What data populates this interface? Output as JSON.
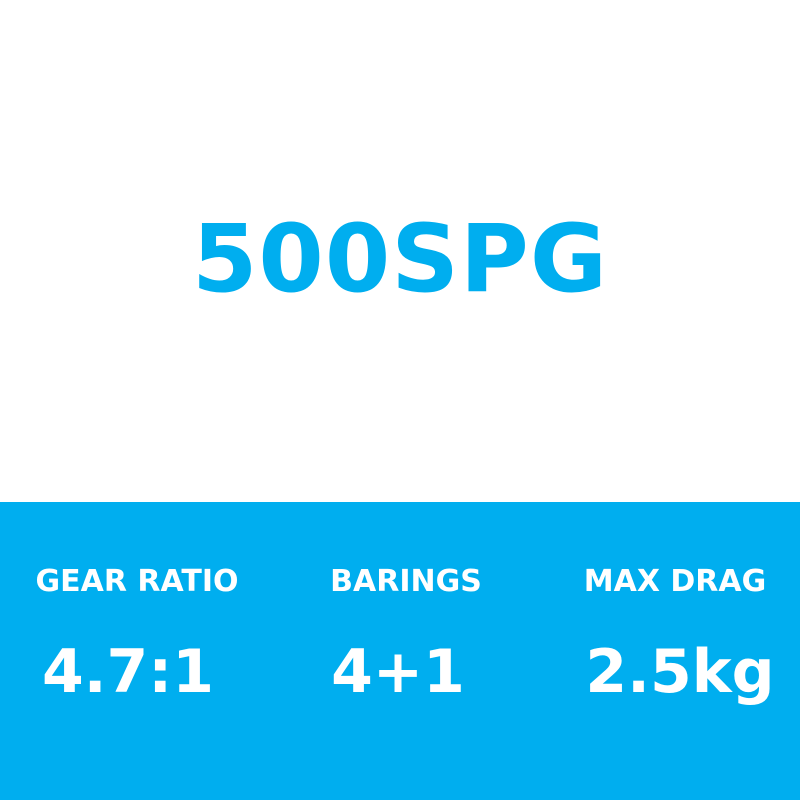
{
  "title": "500SPG",
  "colors": {
    "accent": "#00AEEF",
    "background": "#FFFFFF",
    "band_text": "#FFFFFF"
  },
  "specs": [
    {
      "label": "GEAR RATIO",
      "value": "4.7:1"
    },
    {
      "label": "BARINGS",
      "value": "4+1"
    },
    {
      "label": "MAX DRAG",
      "value": "2.5kg"
    }
  ]
}
